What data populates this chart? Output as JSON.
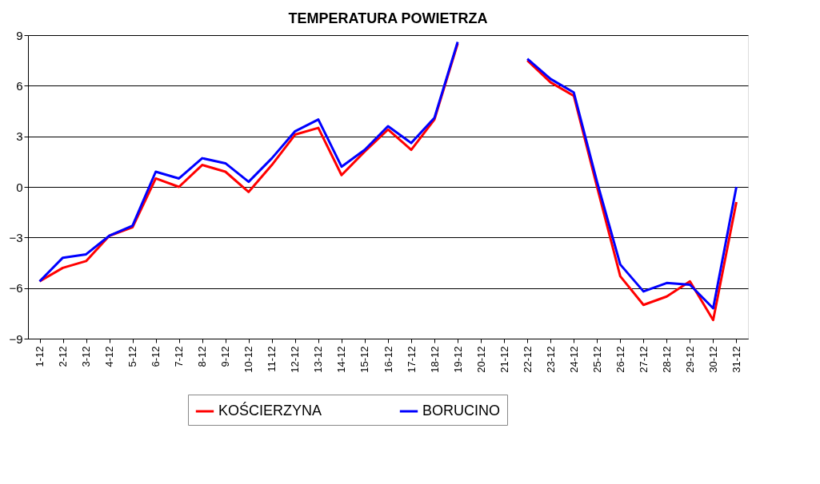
{
  "chart_data": {
    "type": "line",
    "title": "TEMPERATURA  POWIETRZA",
    "categories": [
      "1-12",
      "2-12",
      "3-12",
      "4-12",
      "5-12",
      "6-12",
      "7-12",
      "8-12",
      "9-12",
      "10-12",
      "11-12",
      "12-12",
      "13-12",
      "14-12",
      "15-12",
      "16-12",
      "17-12",
      "18-12",
      "19-12",
      "20-12",
      "21-12",
      "22-12",
      "23-12",
      "24-12",
      "25-12",
      "26-12",
      "27-12",
      "28-12",
      "29-12",
      "30-12",
      "31-12"
    ],
    "series": [
      {
        "name": "KOŚCIERZYNA",
        "color": "#ff0000",
        "values": [
          -5.6,
          -4.8,
          -4.4,
          -2.9,
          -2.4,
          0.5,
          0.0,
          1.3,
          0.9,
          -0.3,
          1.3,
          3.1,
          3.5,
          0.7,
          2.1,
          3.4,
          2.2,
          4.0,
          8.5,
          null,
          null,
          7.5,
          6.2,
          5.4,
          0.0,
          -5.3,
          -7.0,
          -6.5,
          -5.6,
          -7.9,
          -0.9
        ]
      },
      {
        "name": "BORUCINO",
        "color": "#0000ff",
        "values": [
          -5.6,
          -4.2,
          -4.0,
          -2.9,
          -2.3,
          0.9,
          0.5,
          1.7,
          1.4,
          0.3,
          1.7,
          3.3,
          4.0,
          1.2,
          2.2,
          3.6,
          2.6,
          4.1,
          8.6,
          null,
          null,
          7.6,
          6.4,
          5.6,
          0.3,
          -4.6,
          -6.2,
          -5.7,
          -5.8,
          -7.2,
          0.0
        ]
      }
    ],
    "ylim": [
      -9,
      9
    ],
    "yticks": [
      -9,
      -6,
      -3,
      0,
      3,
      6,
      9
    ],
    "grid": "y",
    "legend": "bottom",
    "line_style": "solid",
    "marker": "none"
  }
}
